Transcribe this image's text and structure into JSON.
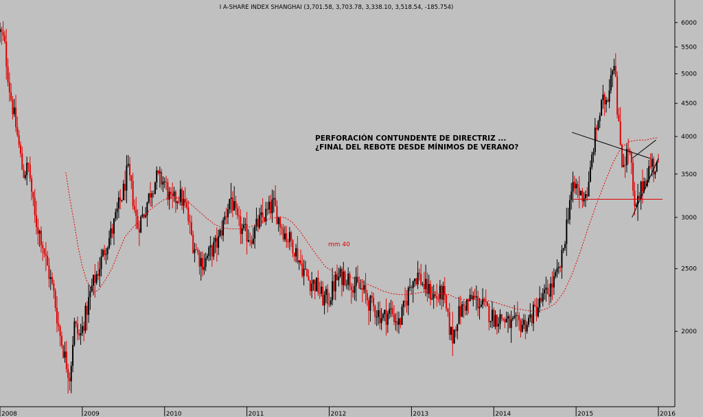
{
  "chart_data": {
    "type": "candlestick",
    "title": "I A-SHARE INDEX SHANGHAI (3,701.58, 3,703.78, 3,338.10, 3,518.54, -185.754)",
    "x_labels": [
      "2008",
      "2009",
      "2010",
      "2011",
      "2012",
      "2013",
      "2014",
      "2015",
      "2016"
    ],
    "y_ticks": [
      2000,
      2500,
      3000,
      3500,
      4000,
      4500,
      5000,
      5500,
      6000
    ],
    "ylim": [
      1530,
      6500
    ],
    "xlim": [
      2008.0,
      2016.2
    ],
    "y_scale": "log",
    "grid": false,
    "annotations": {
      "headline_1": "PERFORACIÓN CONTUNDENTE DE DIRECTRIZ ...",
      "headline_2": "¿FINAL DEL REBOTE DESDE MÍNIMOS DE VERANO?",
      "ma_label": "mm 40"
    },
    "price_path": [
      [
        2008.0,
        5800
      ],
      [
        2008.05,
        5600
      ],
      [
        2008.12,
        4700
      ],
      [
        2008.2,
        4100
      ],
      [
        2008.28,
        3500
      ],
      [
        2008.35,
        3600
      ],
      [
        2008.42,
        3000
      ],
      [
        2008.5,
        2800
      ],
      [
        2008.58,
        2500
      ],
      [
        2008.65,
        2300
      ],
      [
        2008.72,
        2000
      ],
      [
        2008.8,
        1800
      ],
      [
        2008.85,
        1700
      ],
      [
        2008.9,
        2050
      ],
      [
        2008.97,
        1950
      ],
      [
        2009.05,
        2150
      ],
      [
        2009.12,
        2350
      ],
      [
        2009.2,
        2500
      ],
      [
        2009.28,
        2700
      ],
      [
        2009.36,
        2850
      ],
      [
        2009.42,
        3050
      ],
      [
        2009.5,
        3300
      ],
      [
        2009.55,
        3550
      ],
      [
        2009.6,
        3300
      ],
      [
        2009.67,
        2900
      ],
      [
        2009.75,
        3050
      ],
      [
        2009.83,
        3300
      ],
      [
        2009.9,
        3450
      ],
      [
        2010.0,
        3400
      ],
      [
        2010.08,
        3150
      ],
      [
        2010.18,
        3250
      ],
      [
        2010.26,
        3100
      ],
      [
        2010.34,
        2750
      ],
      [
        2010.42,
        2600
      ],
      [
        2010.48,
        2550
      ],
      [
        2010.55,
        2650
      ],
      [
        2010.65,
        2750
      ],
      [
        2010.75,
        3050
      ],
      [
        2010.8,
        3250
      ],
      [
        2010.88,
        2950
      ],
      [
        2010.95,
        2850
      ],
      [
        2011.05,
        2800
      ],
      [
        2011.15,
        2950
      ],
      [
        2011.25,
        3050
      ],
      [
        2011.32,
        3150
      ],
      [
        2011.4,
        2950
      ],
      [
        2011.48,
        2800
      ],
      [
        2011.55,
        2750
      ],
      [
        2011.65,
        2550
      ],
      [
        2011.75,
        2400
      ],
      [
        2011.85,
        2350
      ],
      [
        2011.92,
        2250
      ],
      [
        2012.0,
        2250
      ],
      [
        2012.08,
        2400
      ],
      [
        2012.18,
        2450
      ],
      [
        2012.25,
        2400
      ],
      [
        2012.33,
        2350
      ],
      [
        2012.42,
        2300
      ],
      [
        2012.5,
        2200
      ],
      [
        2012.58,
        2150
      ],
      [
        2012.65,
        2100
      ],
      [
        2012.75,
        2150
      ],
      [
        2012.85,
        2050
      ],
      [
        2012.92,
        2200
      ],
      [
        2013.0,
        2400
      ],
      [
        2013.08,
        2450
      ],
      [
        2013.15,
        2350
      ],
      [
        2013.22,
        2300
      ],
      [
        2013.3,
        2250
      ],
      [
        2013.38,
        2300
      ],
      [
        2013.45,
        2050
      ],
      [
        2013.5,
        1950
      ],
      [
        2013.55,
        2100
      ],
      [
        2013.65,
        2200
      ],
      [
        2013.75,
        2250
      ],
      [
        2013.85,
        2200
      ],
      [
        2013.92,
        2150
      ],
      [
        2014.0,
        2100
      ],
      [
        2014.1,
        2100
      ],
      [
        2014.2,
        2050
      ],
      [
        2014.3,
        2050
      ],
      [
        2014.4,
        2060
      ],
      [
        2014.5,
        2150
      ],
      [
        2014.6,
        2250
      ],
      [
        2014.7,
        2350
      ],
      [
        2014.78,
        2450
      ],
      [
        2014.83,
        2600
      ],
      [
        2014.88,
        2900
      ],
      [
        2014.93,
        3250
      ],
      [
        2014.97,
        3300
      ],
      [
        2015.0,
        3350
      ],
      [
        2015.05,
        3250
      ],
      [
        2015.1,
        3250
      ],
      [
        2015.15,
        3300
      ],
      [
        2015.2,
        3800
      ],
      [
        2015.26,
        4200
      ],
      [
        2015.32,
        4500
      ],
      [
        2015.38,
        4600
      ],
      [
        2015.42,
        5000
      ],
      [
        2015.45,
        5250
      ],
      [
        2015.48,
        5150
      ],
      [
        2015.5,
        4300
      ],
      [
        2015.53,
        4000
      ],
      [
        2015.56,
        3650
      ],
      [
        2015.6,
        3700
      ],
      [
        2015.64,
        3850
      ],
      [
        2015.67,
        3600
      ],
      [
        2015.69,
        3300
      ],
      [
        2015.71,
        3050
      ],
      [
        2015.73,
        3100
      ],
      [
        2015.76,
        3200
      ],
      [
        2015.8,
        3350
      ],
      [
        2015.84,
        3450
      ],
      [
        2015.88,
        3550
      ],
      [
        2015.92,
        3650
      ],
      [
        2015.95,
        3550
      ],
      [
        2015.98,
        3600
      ],
      [
        2016.01,
        3520
      ]
    ],
    "ma40_path": [
      [
        2008.8,
        3520
      ],
      [
        2008.85,
        3200
      ],
      [
        2008.9,
        2950
      ],
      [
        2008.95,
        2700
      ],
      [
        2009.0,
        2520
      ],
      [
        2009.05,
        2400
      ],
      [
        2009.1,
        2340
      ],
      [
        2009.15,
        2300
      ],
      [
        2009.2,
        2320
      ],
      [
        2009.28,
        2400
      ],
      [
        2009.36,
        2500
      ],
      [
        2009.44,
        2650
      ],
      [
        2009.52,
        2800
      ],
      [
        2009.62,
        2900
      ],
      [
        2009.72,
        2980
      ],
      [
        2009.82,
        3080
      ],
      [
        2009.92,
        3150
      ],
      [
        2010.0,
        3200
      ],
      [
        2010.1,
        3220
      ],
      [
        2010.2,
        3210
      ],
      [
        2010.3,
        3160
      ],
      [
        2010.4,
        3080
      ],
      [
        2010.5,
        3000
      ],
      [
        2010.6,
        2930
      ],
      [
        2010.7,
        2890
      ],
      [
        2010.8,
        2880
      ],
      [
        2010.9,
        2880
      ],
      [
        2011.0,
        2890
      ],
      [
        2011.1,
        2920
      ],
      [
        2011.2,
        2960
      ],
      [
        2011.3,
        2990
      ],
      [
        2011.38,
        3000
      ],
      [
        2011.46,
        3000
      ],
      [
        2011.55,
        2950
      ],
      [
        2011.65,
        2850
      ],
      [
        2011.75,
        2730
      ],
      [
        2011.85,
        2620
      ],
      [
        2011.95,
        2520
      ],
      [
        2012.05,
        2470
      ],
      [
        2012.15,
        2450
      ],
      [
        2012.25,
        2430
      ],
      [
        2012.35,
        2400
      ],
      [
        2012.45,
        2370
      ],
      [
        2012.55,
        2340
      ],
      [
        2012.65,
        2310
      ],
      [
        2012.75,
        2290
      ],
      [
        2012.85,
        2280
      ],
      [
        2012.95,
        2280
      ],
      [
        2013.05,
        2290
      ],
      [
        2013.15,
        2300
      ],
      [
        2013.25,
        2300
      ],
      [
        2013.35,
        2290
      ],
      [
        2013.45,
        2280
      ],
      [
        2013.55,
        2250
      ],
      [
        2013.65,
        2240
      ],
      [
        2013.75,
        2240
      ],
      [
        2013.85,
        2240
      ],
      [
        2013.95,
        2230
      ],
      [
        2014.05,
        2210
      ],
      [
        2014.15,
        2190
      ],
      [
        2014.25,
        2170
      ],
      [
        2014.35,
        2160
      ],
      [
        2014.45,
        2150
      ],
      [
        2014.55,
        2150
      ],
      [
        2014.65,
        2170
      ],
      [
        2014.75,
        2210
      ],
      [
        2014.85,
        2300
      ],
      [
        2014.95,
        2450
      ],
      [
        2015.05,
        2650
      ],
      [
        2015.15,
        2900
      ],
      [
        2015.25,
        3150
      ],
      [
        2015.35,
        3400
      ],
      [
        2015.45,
        3650
      ],
      [
        2015.55,
        3850
      ],
      [
        2015.65,
        3930
      ],
      [
        2015.75,
        3950
      ],
      [
        2015.85,
        3950
      ],
      [
        2015.95,
        3980
      ],
      [
        2016.0,
        3980
      ]
    ],
    "trendlines": [
      {
        "name": "directriz",
        "color": "#000000",
        "points": [
          [
            2014.95,
            4060
          ],
          [
            2015.9,
            3700
          ]
        ]
      },
      {
        "name": "canal-inferior",
        "color": "#000000",
        "points": [
          [
            2015.68,
            3000
          ],
          [
            2016.0,
            3700
          ]
        ]
      },
      {
        "name": "canal-superior",
        "color": "#000000",
        "points": [
          [
            2015.68,
            3700
          ],
          [
            2015.97,
            3950
          ]
        ]
      },
      {
        "name": "soporte",
        "color": "#e00000",
        "points": [
          [
            2014.97,
            3200
          ],
          [
            2016.05,
            3200
          ]
        ]
      }
    ]
  },
  "colors": {
    "background": "#c0c0c0",
    "up_candle": "#000000",
    "down_candle": "#e00000",
    "ma_line": "#e00000"
  }
}
